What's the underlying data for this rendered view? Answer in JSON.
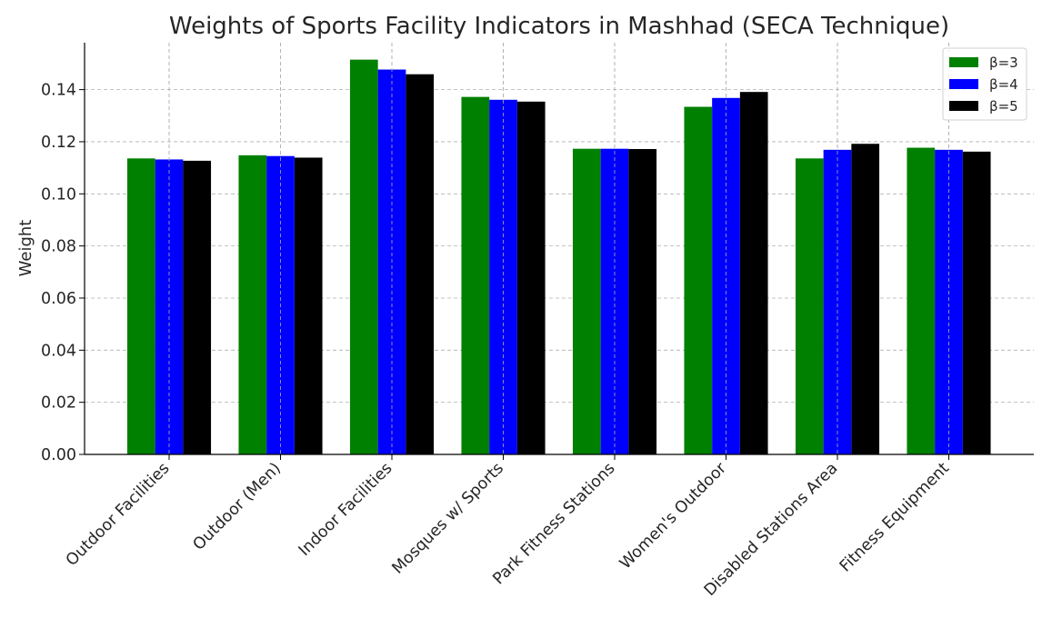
{
  "chart_data": {
    "type": "bar",
    "title": "Weights of Sports Facility Indicators in Mashhad (SECA Technique)",
    "xlabel": "",
    "ylabel": "Weight",
    "ylim": [
      0,
      0.158
    ],
    "yticks": [
      "0.00",
      "0.02",
      "0.04",
      "0.06",
      "0.08",
      "0.10",
      "0.12",
      "0.14"
    ],
    "grid": true,
    "legend_position": "top-right",
    "categories": [
      "Outdoor Facilities",
      "Outdoor (Men)",
      "Indoor Facilities",
      "Mosques w/ Sports",
      "Park Fitness Stations",
      "Women's Outdoor",
      "Disabled Stations Area",
      "Fitness Equipment"
    ],
    "series": [
      {
        "name": "β=3",
        "color": "#008000",
        "values": [
          0.1136,
          0.1148,
          0.1515,
          0.1372,
          0.1173,
          0.1334,
          0.1136,
          0.1177
        ]
      },
      {
        "name": "β=4",
        "color": "#0000ff",
        "values": [
          0.1132,
          0.1145,
          0.1477,
          0.1361,
          0.1173,
          0.1368,
          0.1169,
          0.1169
        ]
      },
      {
        "name": "β=5",
        "color": "#000000",
        "values": [
          0.1127,
          0.1139,
          0.1459,
          0.1354,
          0.1172,
          0.1391,
          0.1192,
          0.1162
        ]
      }
    ]
  }
}
